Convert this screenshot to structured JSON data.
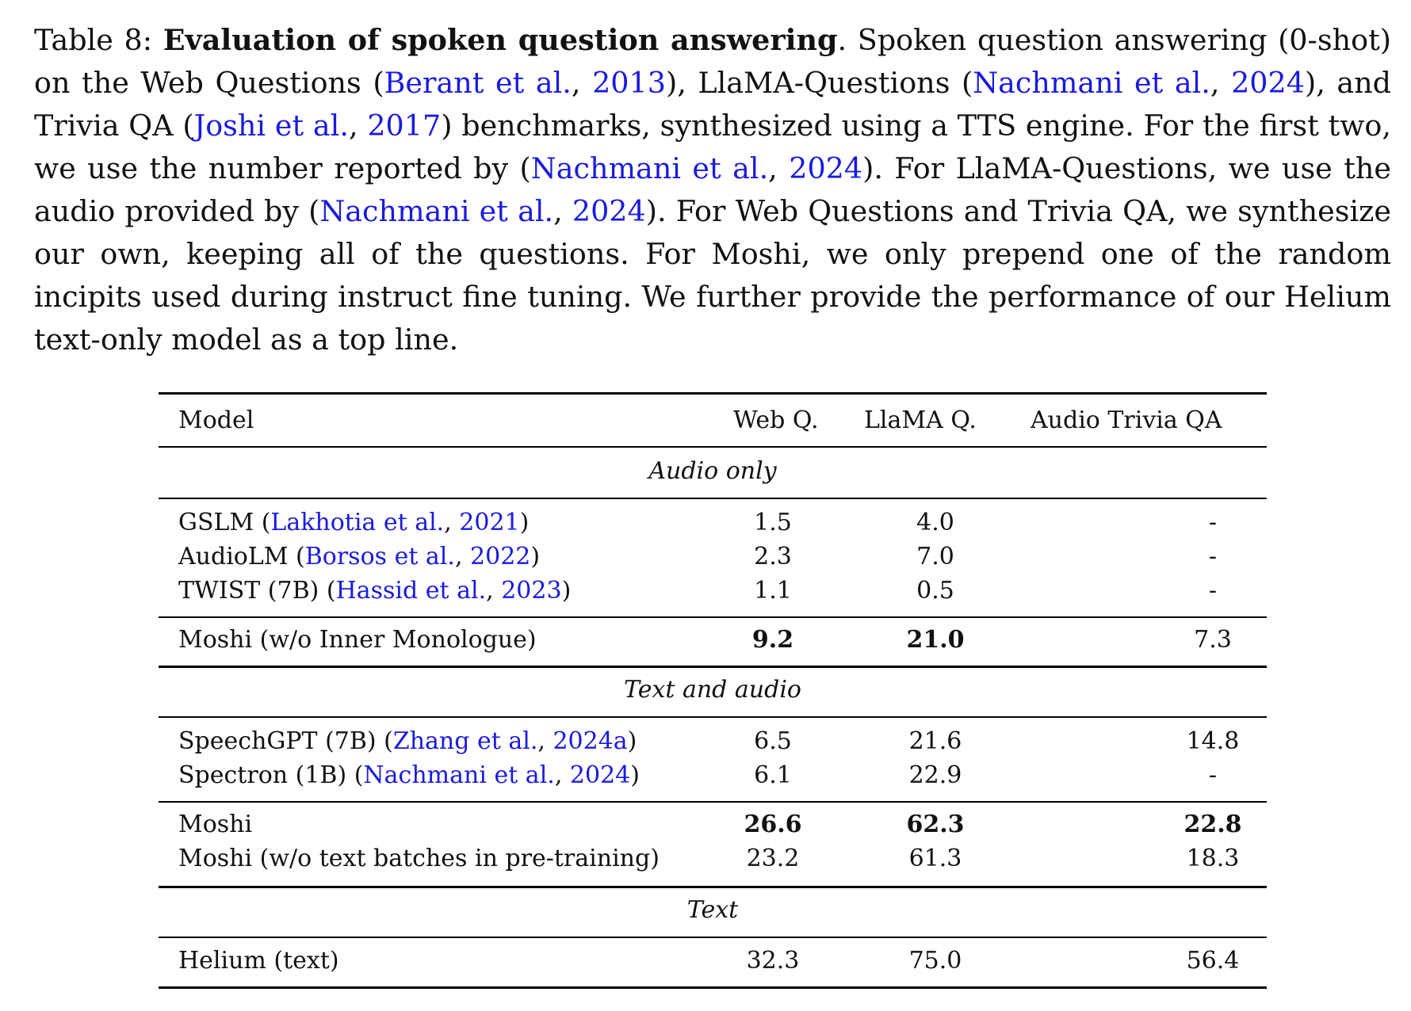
{
  "caption": {
    "label": "Table 8:",
    "title": "Evaluation of spoken question answering",
    "t1": ". Spoken question answering (0-shot) on the Web Questions (",
    "c1_author": "Berant et al.",
    "c1_year": "2013",
    "t2": "), LlaMA-Questions (",
    "c2_author": "Nachmani et al.",
    "c2_year": "2024",
    "t3": "), and Trivia QA (",
    "c3_author": "Joshi et al.",
    "c3_year": "2017",
    "t4": ") benchmarks, synthesized using a TTS engine. For the first two, we use the number reported by (",
    "c4_author": "Nachmani et al.",
    "c4_year": "2024",
    "t5": "). For LlaMA-Questions, we use the audio provided by (",
    "c5_author": "Nachmani et al.",
    "c5_year": "2024",
    "t6": "). For Web Questions and Trivia QA, we synthesize our own, keeping all of the questions. For Moshi, we only prepend one of the random incipits used during instruct fine tuning. We further provide the performance of our Helium text-only model as a top line."
  },
  "table": {
    "headers": [
      "Model",
      "Web Q.",
      "LlaMA Q.",
      "Audio Trivia QA"
    ],
    "sections": {
      "audio_only": "Audio only",
      "text_and_audio": "Text and audio",
      "text": "Text"
    },
    "rows": [
      {
        "model": "GSLM (",
        "cite_author": "Lakhotia et al.",
        "cite_year": "2021",
        "suffix": ")",
        "webq": "1.5",
        "llama": "4.0",
        "trivia": "-"
      },
      {
        "model": "AudioLM (",
        "cite_author": "Borsos et al.",
        "cite_year": "2022",
        "suffix": ")",
        "webq": "2.3",
        "llama": "7.0",
        "trivia": "-"
      },
      {
        "model": "TWIST (7B) (",
        "cite_author": "Hassid et al.",
        "cite_year": "2023",
        "suffix": ")",
        "webq": "1.1",
        "llama": "0.5",
        "trivia": "-"
      },
      {
        "model": "Moshi (w/o Inner Monologue)",
        "webq": "9.2",
        "llama": "21.0",
        "trivia": "7.3"
      },
      {
        "model": "SpeechGPT (7B) (",
        "cite_author": "Zhang et al.",
        "cite_year": "2024a",
        "suffix": ")",
        "webq": "6.5",
        "llama": "21.6",
        "trivia": "14.8"
      },
      {
        "model": "Spectron (1B) (",
        "cite_author": "Nachmani et al.",
        "cite_year": "2024",
        "suffix": ")",
        "webq": "6.1",
        "llama": "22.9",
        "trivia": "-"
      },
      {
        "model": "Moshi",
        "webq": "26.6",
        "llama": "62.3",
        "trivia": "22.8"
      },
      {
        "model": "Moshi (w/o text batches in pre-training)",
        "webq": "23.2",
        "llama": "61.3",
        "trivia": "18.3"
      },
      {
        "model": "Helium (text)",
        "webq": "32.3",
        "llama": "75.0",
        "trivia": "56.4"
      }
    ],
    "punct": ", "
  }
}
